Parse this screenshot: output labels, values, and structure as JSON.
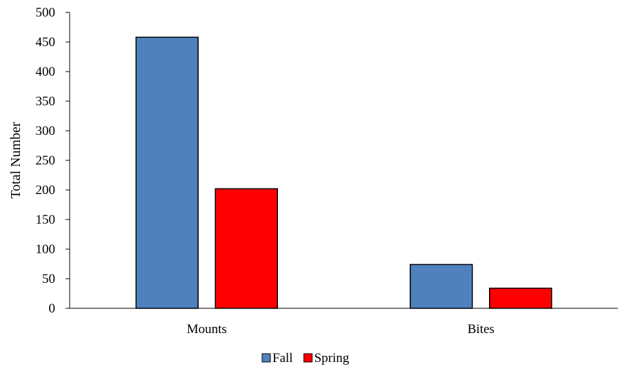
{
  "chart_data": {
    "type": "bar",
    "title": "",
    "xlabel": "",
    "ylabel": "Total Number",
    "categories": [
      "Mounts",
      "Bites"
    ],
    "series": [
      {
        "name": "Fall",
        "color": "#4f81bd",
        "values": [
          458,
          74
        ]
      },
      {
        "name": "Spring",
        "color": "#ff0000",
        "values": [
          202,
          34
        ]
      }
    ],
    "ylim": [
      0,
      500
    ],
    "yticks": [
      0,
      50,
      100,
      150,
      200,
      250,
      300,
      350,
      400,
      450,
      500
    ],
    "grid": false,
    "legend_position": "bottom"
  }
}
